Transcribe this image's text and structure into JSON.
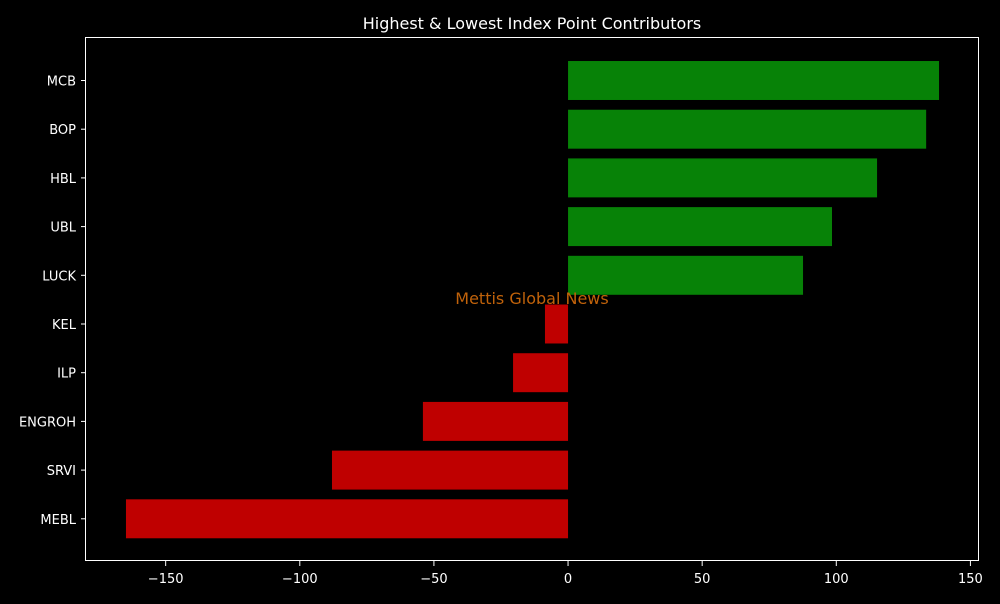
{
  "chart_data": {
    "type": "bar",
    "orientation": "horizontal",
    "title": "Highest & Lowest Index Point Contributors",
    "watermark": "Mettis Global News",
    "categories": [
      "MCB",
      "BOP",
      "HBL",
      "UBL",
      "LUCK",
      "KEL",
      "ILP",
      "ENGROH",
      "SRVI",
      "MEBL"
    ],
    "values": [
      138.3,
      133.5,
      115.2,
      98.4,
      87.6,
      -8.6,
      -20.5,
      -54.1,
      -88.0,
      -164.8
    ],
    "xlim": [
      -179.7,
      153.2
    ],
    "xticks": [
      -150,
      -100,
      -50,
      0,
      50,
      100,
      150
    ],
    "xtick_labels": [
      "−150",
      "−100",
      "−50",
      "0",
      "50",
      "100",
      "150"
    ],
    "xlabel": "",
    "ylabel": "",
    "grid": false,
    "colors": {
      "positive": "#078207",
      "negative": "#bf0000",
      "background": "#000000",
      "axes": "#ffffff",
      "watermark": "#c0620a"
    }
  }
}
